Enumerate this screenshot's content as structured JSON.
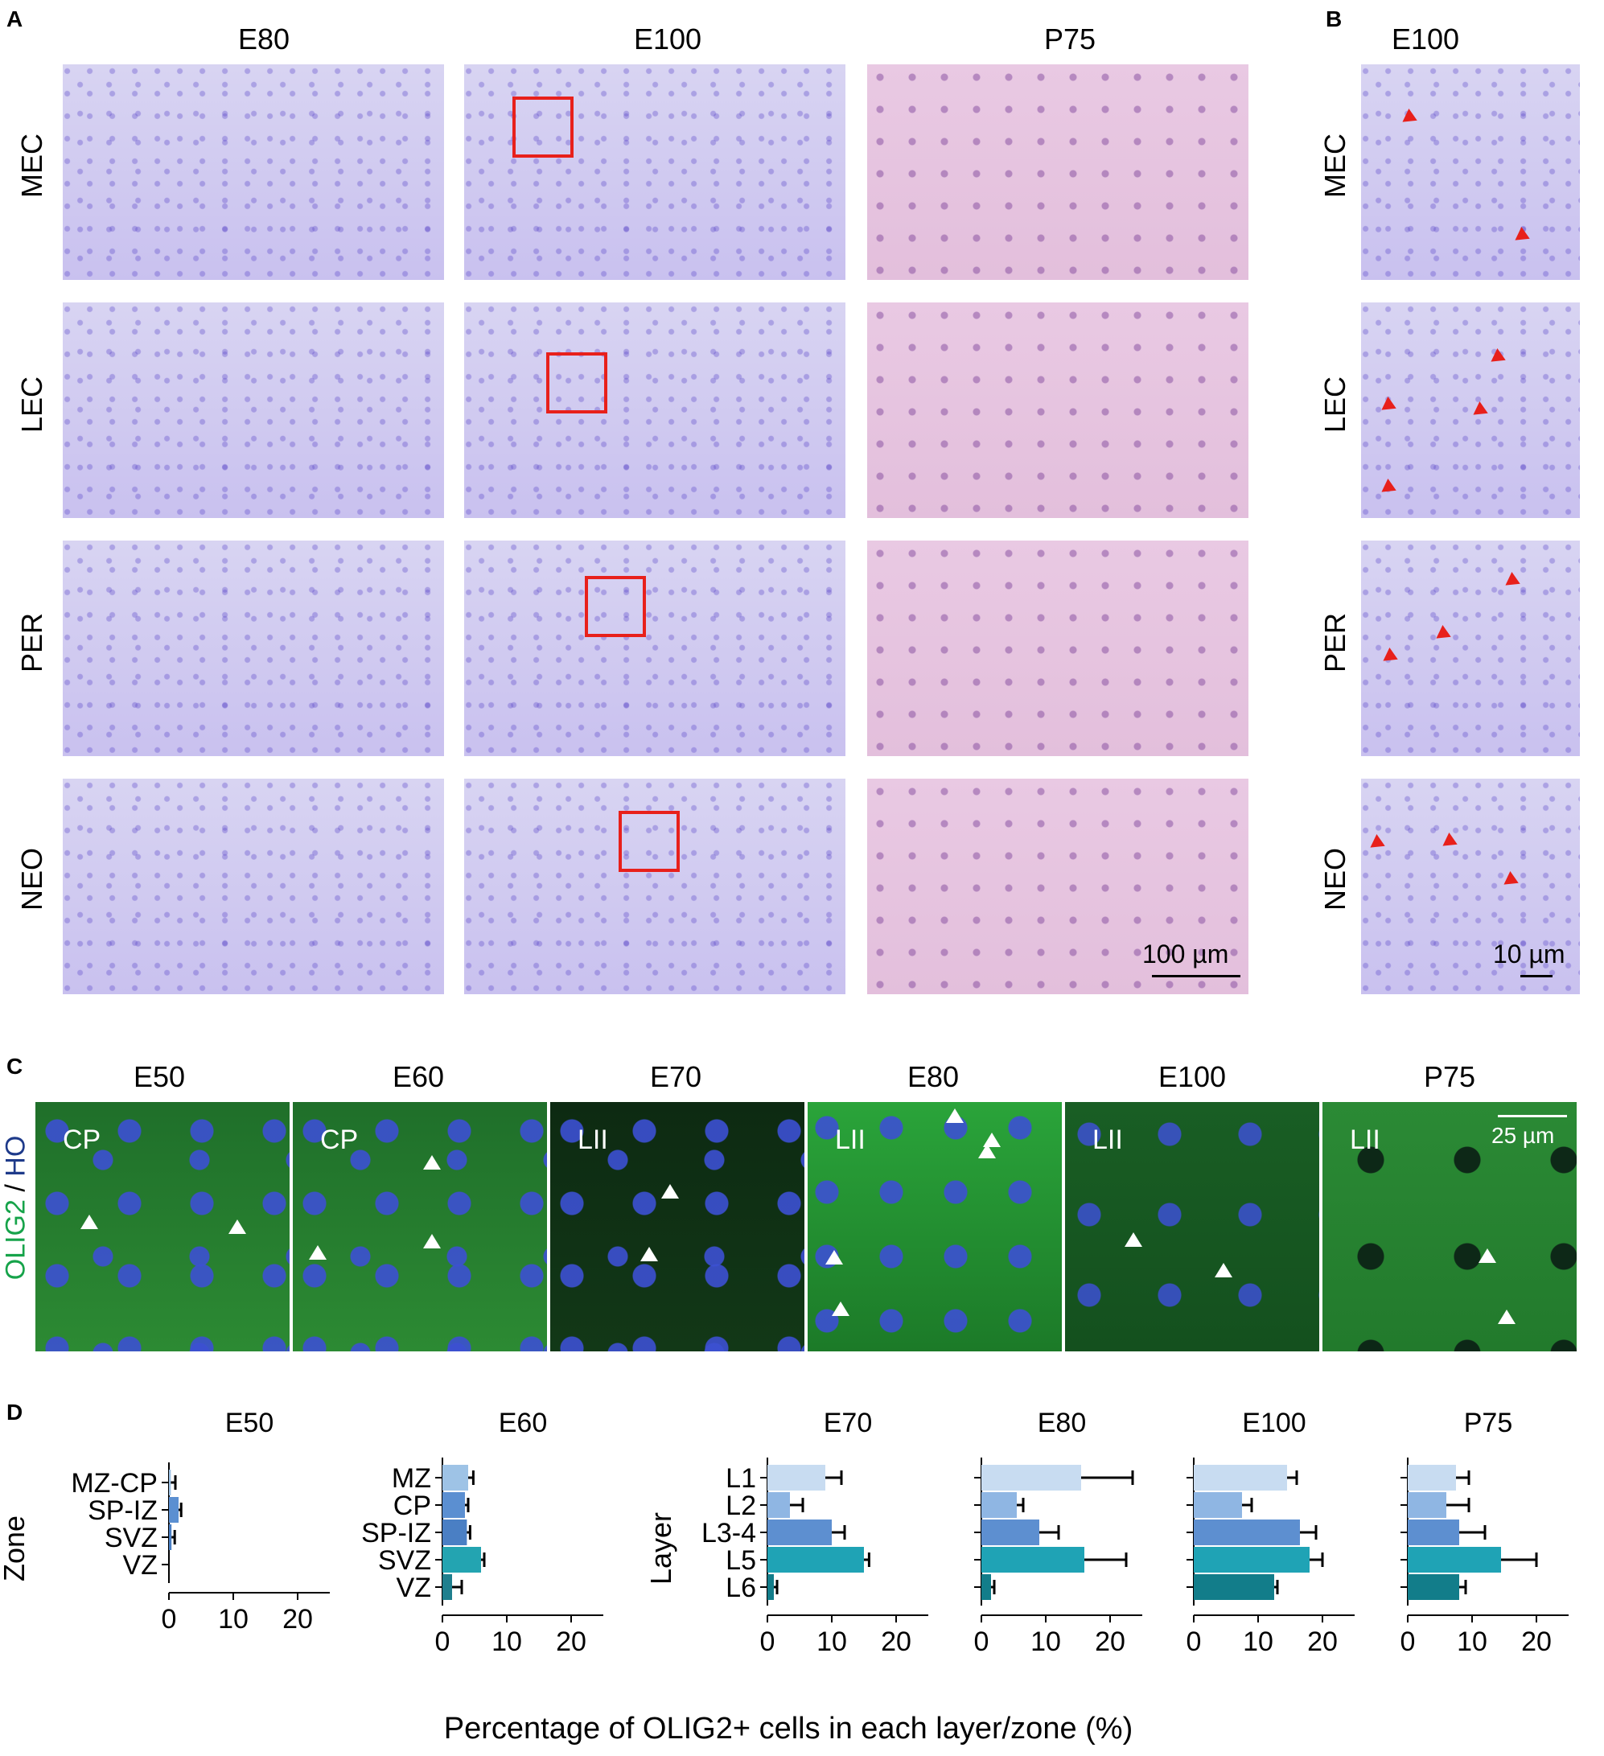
{
  "panels": {
    "A": {
      "label": "A",
      "columns": [
        "E80",
        "E100",
        "P75"
      ],
      "rows": [
        "MEC",
        "LEC",
        "PER",
        "NEO"
      ],
      "scale": "100 µm"
    },
    "B": {
      "label": "B",
      "column": "E100",
      "rows": [
        "MEC",
        "LEC",
        "PER",
        "NEO"
      ],
      "scale": "10 µm"
    },
    "C": {
      "label": "C",
      "ylabel": [
        "OLIG2",
        "/",
        "HO"
      ],
      "colors": {
        "OLIG2": "#16a34a",
        "HO": "#1e3a8a"
      },
      "tiles": [
        {
          "title": "E50",
          "tag": "CP"
        },
        {
          "title": "E60",
          "tag": "CP"
        },
        {
          "title": "E70",
          "tag": "LII"
        },
        {
          "title": "E80",
          "tag": "LII"
        },
        {
          "title": "E100",
          "tag": "LII"
        },
        {
          "title": "P75",
          "tag": "LII"
        }
      ],
      "scale": "25 µm"
    },
    "D": {
      "label": "D",
      "xlabel": "Percentage of OLIG2+ cells in each layer/zone (%)",
      "zone_axis": "Zone",
      "layer_axis": "Layer"
    }
  },
  "chart_data": [
    {
      "type": "bar",
      "title": "E50",
      "ylabel": "Zone",
      "categories": [
        "MZ-CP",
        "SP-IZ",
        "SVZ",
        "VZ"
      ],
      "values": [
        0.3,
        1.5,
        0.4,
        0.0
      ],
      "errors": [
        0.7,
        0.4,
        0.5,
        0.0
      ],
      "xlim": [
        0,
        25
      ],
      "xticks": [
        0,
        10,
        20
      ],
      "show_category_labels": true
    },
    {
      "type": "bar",
      "title": "E60",
      "ylabel": "",
      "categories": [
        "MZ",
        "CP",
        "SP-IZ",
        "SVZ",
        "VZ"
      ],
      "values": [
        4.0,
        3.5,
        3.8,
        6.0,
        1.5
      ],
      "errors": [
        0.8,
        0.5,
        0.5,
        0.5,
        1.5
      ],
      "xlim": [
        0,
        25
      ],
      "xticks": [
        0,
        10,
        20
      ],
      "show_category_labels": true
    },
    {
      "type": "bar",
      "title": "E70",
      "ylabel": "Layer",
      "categories": [
        "L1",
        "L2",
        "L3-4",
        "L5",
        "L6"
      ],
      "values": [
        9,
        3.5,
        10,
        15,
        1
      ],
      "errors": [
        2.5,
        2.0,
        2.0,
        0.8,
        0.5
      ],
      "xlim": [
        0,
        25
      ],
      "xticks": [
        0,
        10,
        20
      ],
      "show_category_labels": true
    },
    {
      "type": "bar",
      "title": "E80",
      "ylabel": "",
      "categories": [
        "L1",
        "L2",
        "L3-4",
        "L5",
        "L6"
      ],
      "values": [
        15.5,
        5.5,
        9,
        16,
        1.5
      ],
      "errors": [
        8,
        1.0,
        3.0,
        6.5,
        0.5
      ],
      "xlim": [
        0,
        25
      ],
      "xticks": [
        0,
        10,
        20
      ],
      "show_category_labels": false
    },
    {
      "type": "bar",
      "title": "E100",
      "ylabel": "",
      "categories": [
        "L1",
        "L2",
        "L3-4",
        "L5",
        "L6"
      ],
      "values": [
        14.5,
        7.5,
        16.5,
        18,
        12.5
      ],
      "errors": [
        1.5,
        1.5,
        2.5,
        2.0,
        0.5
      ],
      "xlim": [
        0,
        25
      ],
      "xticks": [
        0,
        10,
        20
      ],
      "show_category_labels": false
    },
    {
      "type": "bar",
      "title": "P75",
      "ylabel": "",
      "categories": [
        "L1",
        "L2",
        "L3-4",
        "L5",
        "L6"
      ],
      "values": [
        7.5,
        6.0,
        8.0,
        14.5,
        8.0
      ],
      "errors": [
        2.0,
        3.5,
        4.0,
        5.5,
        1.0
      ],
      "xlim": [
        0,
        25
      ],
      "xticks": [
        0,
        10,
        20
      ],
      "show_category_labels": false
    }
  ],
  "bar_colors": {
    "zone": [
      "#9ec3e6",
      "#5b8fd1",
      "#4a7fc4",
      "#23a4b1",
      "#1f7f8e"
    ],
    "layer": [
      "#c8dcf1",
      "#8fb6e3",
      "#5d8fd0",
      "#1fa3b5",
      "#127d8a"
    ]
  }
}
